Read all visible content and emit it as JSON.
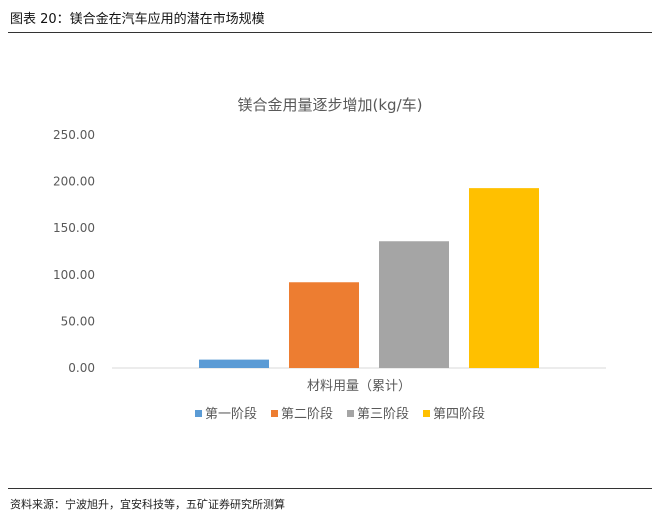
{
  "figure": {
    "title": "图表 20：镁合金在汽车应用的潜在市场规模",
    "source": "资料来源：宁波旭升，宜安科技等，五矿证券研究所测算"
  },
  "chart_data": {
    "type": "bar",
    "title": "镁合金用量逐步增加(kg/车)",
    "xlabel": "材料用量（累计）",
    "ylabel": "",
    "ylim": [
      0,
      250
    ],
    "yticks": [
      "0.00",
      "50.00",
      "100.00",
      "150.00",
      "200.00",
      "250.00"
    ],
    "grid": false,
    "legend_position": "bottom",
    "series": [
      {
        "name": "第一阶段",
        "value": 9,
        "color": "#5B9BD5"
      },
      {
        "name": "第二阶段",
        "value": 92,
        "color": "#ED7D31"
      },
      {
        "name": "第三阶段",
        "value": 136,
        "color": "#A5A5A5"
      },
      {
        "name": "第四阶段",
        "value": 193,
        "color": "#FFC000"
      }
    ]
  }
}
